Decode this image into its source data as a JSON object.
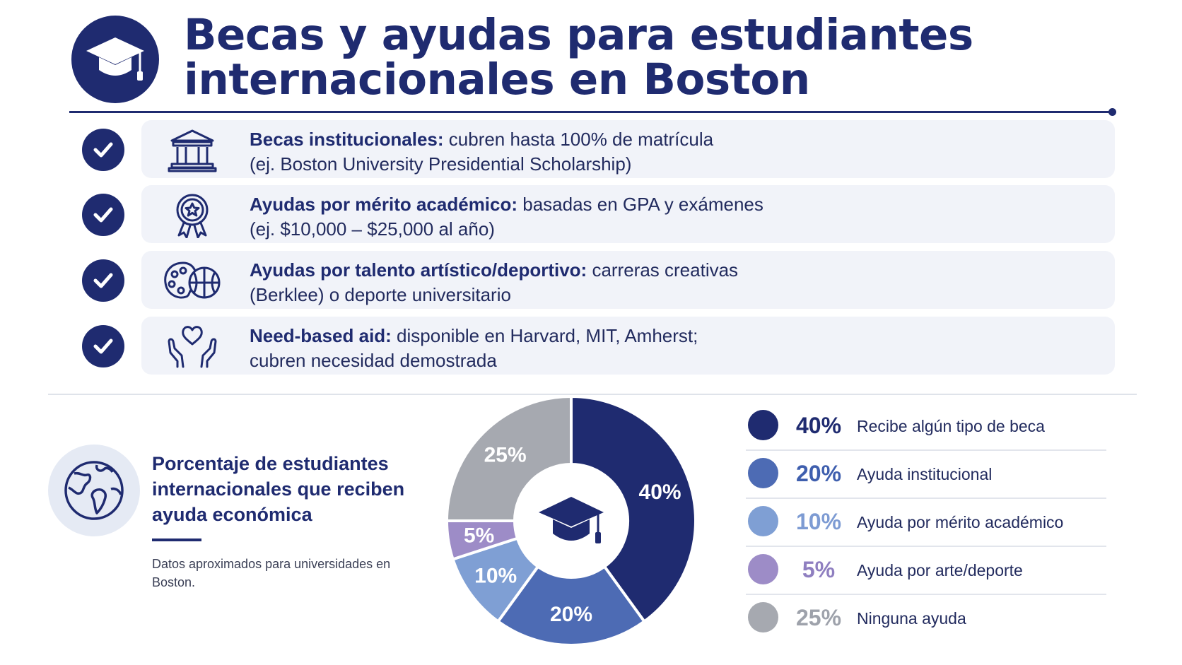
{
  "header": {
    "title_line1": "Becas y ayudas para estudiantes",
    "title_line2": "internacionales en Boston",
    "logo_icon": "graduation-cap-icon"
  },
  "items": [
    {
      "icon": "institution-building-icon",
      "bold": "Becas institucionales:",
      "rest": " cubren hasta 100% de matrícula",
      "line2": "(ej. Boston University Presidential Scholarship)"
    },
    {
      "icon": "award-medal-icon",
      "bold": "Ayudas por mérito académico:",
      "rest": " basadas en GPA y exámenes",
      "line2": "(ej. $10,000 – $25,000 al año)"
    },
    {
      "icon": "palette-basketball-icon",
      "bold": "Ayudas por talento artístico/deportivo:",
      "rest": " carreras creativas",
      "line2": "(Berklee) o deporte universitario"
    },
    {
      "icon": "hands-heart-icon",
      "bold": "Need-based aid:",
      "rest": " disponible en Harvard, MIT, Amherst;",
      "line2": "cubren necesidad demostrada"
    }
  ],
  "stats_panel": {
    "title": "Porcentaje de estudiantes internacionales que reciben ayuda económica",
    "note": "Datos aproximados para universidades en Boston.",
    "icon": "globe-icon"
  },
  "chart_data": {
    "type": "pie",
    "donut": true,
    "center_icon": "graduation-cap-icon",
    "categories": [
      "Recibe algún tipo de beca",
      "Ayuda institucional",
      "Ayuda por mérito académico",
      "Ayuda por arte/deporte",
      "Ninguna ayuda"
    ],
    "values": [
      40,
      20,
      10,
      5,
      25
    ],
    "value_labels": [
      "40%",
      "20%",
      "10%",
      "5%",
      "25%"
    ],
    "colors": [
      "#1f2b70",
      "#4d6bb4",
      "#7f9fd4",
      "#9d8cc7",
      "#a6a9b0"
    ],
    "label_colors": [
      "#1f2b70",
      "#3f5fae",
      "#7d9bd3",
      "#8f7fc0",
      "#9ea2ab"
    ],
    "legend_position": "right"
  }
}
